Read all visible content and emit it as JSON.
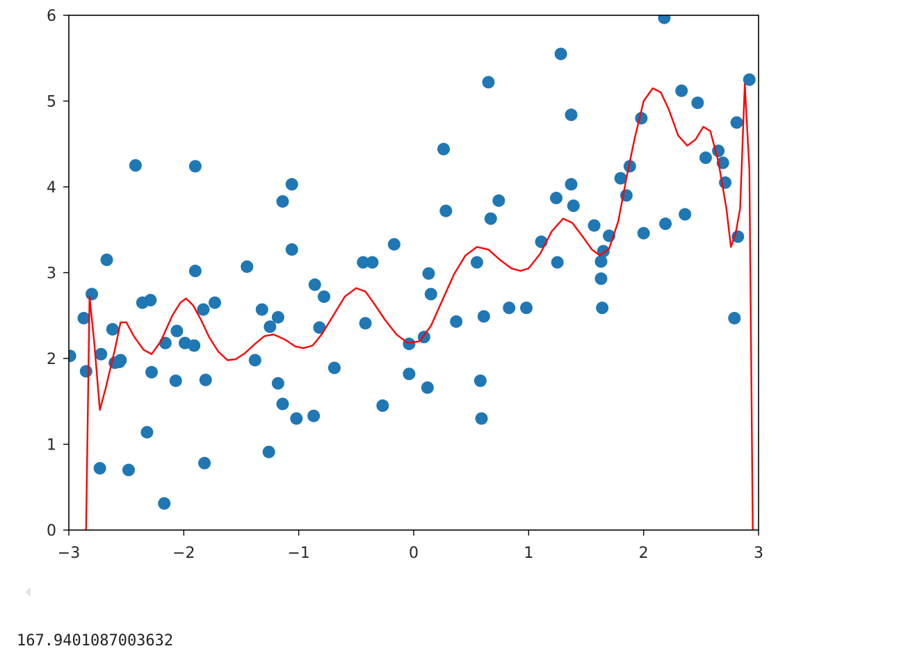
{
  "chart_data": {
    "type": "scatter",
    "title": "",
    "xlabel": "",
    "ylabel": "",
    "xlim": [
      -3,
      3
    ],
    "ylim": [
      0,
      6
    ],
    "grid": false,
    "x_ticks": [
      "−3",
      "−2",
      "−1",
      "0",
      "1",
      "2",
      "3"
    ],
    "y_ticks": [
      "0",
      "1",
      "2",
      "3",
      "4",
      "5",
      "6"
    ],
    "colors": {
      "points": "#1f77b4",
      "curve": "#ff0000",
      "axes": "#000000"
    },
    "series": [
      {
        "type": "scatter",
        "points": [
          [
            -2.99,
            2.03
          ],
          [
            -2.87,
            2.47
          ],
          [
            -2.85,
            1.85
          ],
          [
            -2.8,
            2.75
          ],
          [
            -2.73,
            0.72
          ],
          [
            -2.72,
            2.05
          ],
          [
            -2.67,
            3.15
          ],
          [
            -2.62,
            2.34
          ],
          [
            -2.6,
            1.95
          ],
          [
            -2.56,
            1.96
          ],
          [
            -2.55,
            1.98
          ],
          [
            -2.48,
            0.7
          ],
          [
            -2.42,
            4.25
          ],
          [
            -2.36,
            2.65
          ],
          [
            -2.32,
            1.14
          ],
          [
            -2.29,
            2.68
          ],
          [
            -2.28,
            1.84
          ],
          [
            -2.17,
            0.31
          ],
          [
            -2.16,
            2.18
          ],
          [
            -2.07,
            1.74
          ],
          [
            -2.06,
            2.32
          ],
          [
            -1.99,
            2.18
          ],
          [
            -1.91,
            2.15
          ],
          [
            -1.9,
            4.24
          ],
          [
            -1.9,
            3.02
          ],
          [
            -1.83,
            2.57
          ],
          [
            -1.82,
            0.78
          ],
          [
            -1.81,
            1.75
          ],
          [
            -1.73,
            2.65
          ],
          [
            -1.45,
            3.07
          ],
          [
            -1.38,
            1.98
          ],
          [
            -1.32,
            2.57
          ],
          [
            -1.26,
            0.91
          ],
          [
            -1.25,
            2.37
          ],
          [
            -1.18,
            2.48
          ],
          [
            -1.18,
            1.71
          ],
          [
            -1.14,
            1.47
          ],
          [
            -1.14,
            3.83
          ],
          [
            -1.06,
            3.27
          ],
          [
            -1.06,
            4.03
          ],
          [
            -1.02,
            1.3
          ],
          [
            -0.87,
            1.33
          ],
          [
            -0.86,
            2.86
          ],
          [
            -0.82,
            2.36
          ],
          [
            -0.78,
            2.72
          ],
          [
            -0.69,
            1.89
          ],
          [
            -0.44,
            3.12
          ],
          [
            -0.42,
            2.41
          ],
          [
            -0.36,
            3.12
          ],
          [
            -0.27,
            1.45
          ],
          [
            -0.17,
            3.33
          ],
          [
            -0.04,
            1.82
          ],
          [
            -0.04,
            2.17
          ],
          [
            0.09,
            2.25
          ],
          [
            0.12,
            1.66
          ],
          [
            0.13,
            2.99
          ],
          [
            0.15,
            2.75
          ],
          [
            0.26,
            4.44
          ],
          [
            0.28,
            3.72
          ],
          [
            0.37,
            2.43
          ],
          [
            0.55,
            3.12
          ],
          [
            0.58,
            1.74
          ],
          [
            0.59,
            1.3
          ],
          [
            0.61,
            2.49
          ],
          [
            0.65,
            5.22
          ],
          [
            0.67,
            3.63
          ],
          [
            0.74,
            3.84
          ],
          [
            0.83,
            2.59
          ],
          [
            0.98,
            2.59
          ],
          [
            1.11,
            3.36
          ],
          [
            1.24,
            3.87
          ],
          [
            1.25,
            3.12
          ],
          [
            1.28,
            5.55
          ],
          [
            1.37,
            4.84
          ],
          [
            1.37,
            4.03
          ],
          [
            1.39,
            3.78
          ],
          [
            1.57,
            3.55
          ],
          [
            1.63,
            3.13
          ],
          [
            1.63,
            2.93
          ],
          [
            1.64,
            2.59
          ],
          [
            1.65,
            3.25
          ],
          [
            1.7,
            3.43
          ],
          [
            1.8,
            4.1
          ],
          [
            1.85,
            3.9
          ],
          [
            1.88,
            4.24
          ],
          [
            1.98,
            4.8
          ],
          [
            2.0,
            3.46
          ],
          [
            2.18,
            5.97
          ],
          [
            2.19,
            3.57
          ],
          [
            2.33,
            5.12
          ],
          [
            2.36,
            3.68
          ],
          [
            2.47,
            4.98
          ],
          [
            2.54,
            4.34
          ],
          [
            2.65,
            4.42
          ],
          [
            2.69,
            4.28
          ],
          [
            2.71,
            4.05
          ],
          [
            2.79,
            2.47
          ],
          [
            2.81,
            4.75
          ],
          [
            2.82,
            3.42
          ],
          [
            2.92,
            5.25
          ]
        ]
      },
      {
        "type": "line",
        "points": [
          [
            -2.85,
            0.0
          ],
          [
            -2.82,
            2.72
          ],
          [
            -2.78,
            2.2
          ],
          [
            -2.73,
            1.4
          ],
          [
            -2.68,
            1.65
          ],
          [
            -2.6,
            2.1
          ],
          [
            -2.55,
            2.42
          ],
          [
            -2.5,
            2.42
          ],
          [
            -2.43,
            2.25
          ],
          [
            -2.35,
            2.1
          ],
          [
            -2.28,
            2.05
          ],
          [
            -2.2,
            2.2
          ],
          [
            -2.1,
            2.5
          ],
          [
            -2.03,
            2.65
          ],
          [
            -1.98,
            2.7
          ],
          [
            -1.92,
            2.62
          ],
          [
            -1.85,
            2.45
          ],
          [
            -1.78,
            2.25
          ],
          [
            -1.7,
            2.08
          ],
          [
            -1.62,
            1.98
          ],
          [
            -1.55,
            1.99
          ],
          [
            -1.47,
            2.06
          ],
          [
            -1.38,
            2.17
          ],
          [
            -1.3,
            2.26
          ],
          [
            -1.22,
            2.28
          ],
          [
            -1.12,
            2.22
          ],
          [
            -1.03,
            2.14
          ],
          [
            -0.96,
            2.12
          ],
          [
            -0.88,
            2.15
          ],
          [
            -0.8,
            2.28
          ],
          [
            -0.7,
            2.5
          ],
          [
            -0.6,
            2.72
          ],
          [
            -0.5,
            2.82
          ],
          [
            -0.42,
            2.78
          ],
          [
            -0.35,
            2.65
          ],
          [
            -0.25,
            2.45
          ],
          [
            -0.15,
            2.28
          ],
          [
            -0.05,
            2.18
          ],
          [
            0.05,
            2.2
          ],
          [
            0.15,
            2.38
          ],
          [
            0.25,
            2.68
          ],
          [
            0.35,
            2.98
          ],
          [
            0.45,
            3.2
          ],
          [
            0.55,
            3.3
          ],
          [
            0.65,
            3.27
          ],
          [
            0.75,
            3.15
          ],
          [
            0.85,
            3.05
          ],
          [
            0.93,
            3.02
          ],
          [
            1.0,
            3.05
          ],
          [
            1.1,
            3.22
          ],
          [
            1.2,
            3.48
          ],
          [
            1.3,
            3.63
          ],
          [
            1.38,
            3.58
          ],
          [
            1.47,
            3.42
          ],
          [
            1.55,
            3.27
          ],
          [
            1.62,
            3.2
          ],
          [
            1.7,
            3.28
          ],
          [
            1.78,
            3.6
          ],
          [
            1.85,
            4.1
          ],
          [
            1.92,
            4.55
          ],
          [
            2.0,
            5.0
          ],
          [
            2.08,
            5.15
          ],
          [
            2.15,
            5.1
          ],
          [
            2.22,
            4.9
          ],
          [
            2.3,
            4.6
          ],
          [
            2.38,
            4.48
          ],
          [
            2.45,
            4.55
          ],
          [
            2.52,
            4.7
          ],
          [
            2.58,
            4.65
          ],
          [
            2.65,
            4.3
          ],
          [
            2.72,
            3.75
          ],
          [
            2.76,
            3.3
          ],
          [
            2.8,
            3.45
          ],
          [
            2.84,
            3.75
          ],
          [
            2.88,
            5.2
          ],
          [
            2.92,
            4.2
          ],
          [
            2.95,
            0.0
          ]
        ]
      }
    ]
  },
  "output": {
    "value": "167.9401087003632"
  }
}
